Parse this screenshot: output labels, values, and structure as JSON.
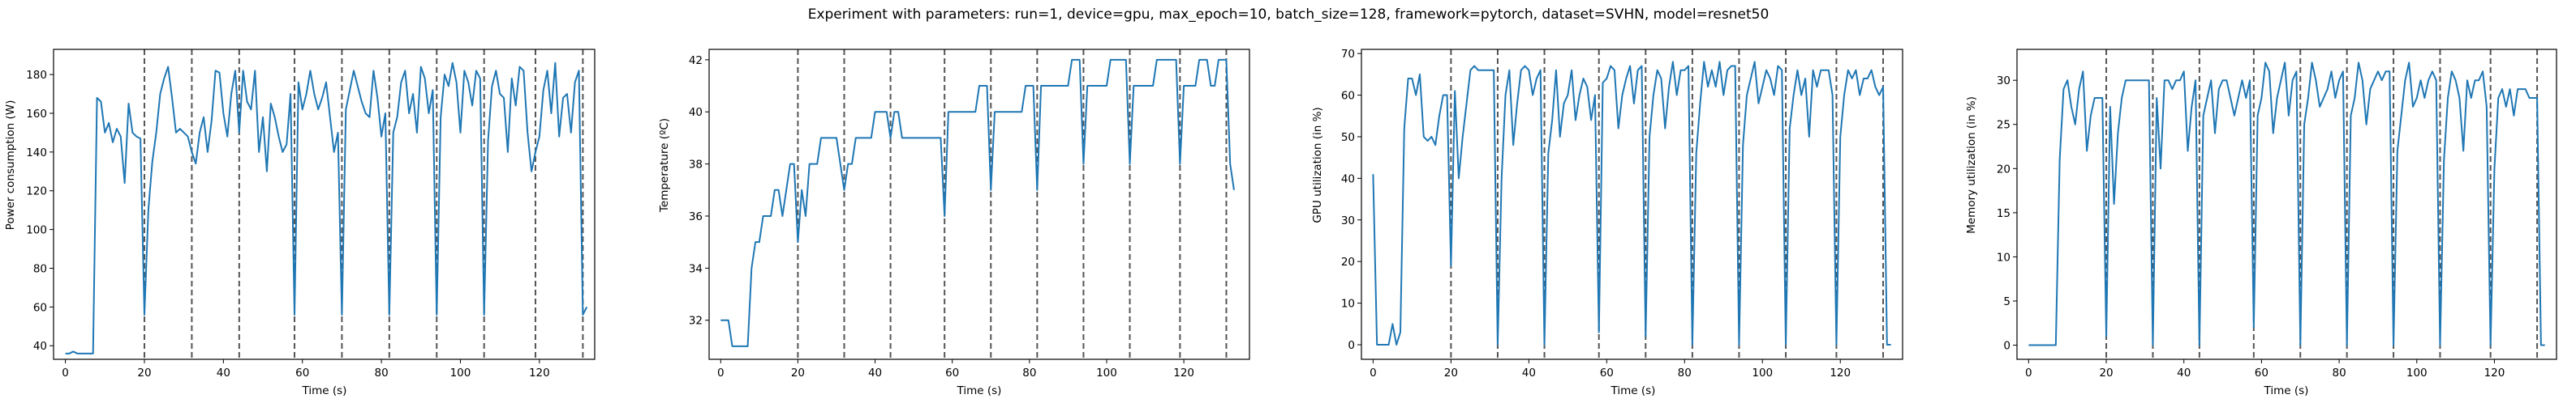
{
  "suptitle": "Experiment with parameters: run=1, device=gpu, max_epoch=10, batch_size=128, framework=pytorch, dataset=SVHN, model=resnet50",
  "style": {
    "line_color": "#1f77b4",
    "vline_color": "#555555",
    "axes_color": "#000000"
  },
  "epoch_markers": [
    20,
    32,
    44,
    58,
    70,
    82,
    94,
    106,
    119,
    131
  ],
  "chart_data": [
    {
      "type": "line",
      "xlabel": "Time (s)",
      "ylabel": "Power consumption (W)",
      "xlim": [
        -3,
        134
      ],
      "ylim": [
        33,
        193
      ],
      "xticks": [
        0,
        20,
        40,
        60,
        80,
        100,
        120
      ],
      "yticks": [
        40,
        60,
        80,
        100,
        120,
        140,
        160,
        180
      ],
      "vlines": [
        20,
        32,
        44,
        58,
        70,
        82,
        94,
        106,
        119,
        131
      ],
      "x": [
        0,
        1,
        2,
        3,
        4,
        5,
        6,
        7,
        8,
        9,
        10,
        11,
        12,
        13,
        14,
        15,
        16,
        17,
        18,
        19,
        20,
        21,
        22,
        23,
        24,
        25,
        26,
        27,
        28,
        29,
        30,
        31,
        32,
        33,
        34,
        35,
        36,
        37,
        38,
        39,
        40,
        41,
        42,
        43,
        44,
        45,
        46,
        47,
        48,
        49,
        50,
        51,
        52,
        53,
        54,
        55,
        56,
        57,
        58,
        59,
        60,
        61,
        62,
        63,
        64,
        65,
        66,
        67,
        68,
        69,
        70,
        71,
        72,
        73,
        74,
        75,
        76,
        77,
        78,
        79,
        80,
        81,
        82,
        83,
        84,
        85,
        86,
        87,
        88,
        89,
        90,
        91,
        92,
        93,
        94,
        95,
        96,
        97,
        98,
        99,
        100,
        101,
        102,
        103,
        104,
        105,
        106,
        107,
        108,
        109,
        110,
        111,
        112,
        113,
        114,
        115,
        116,
        117,
        118,
        119,
        120,
        121,
        122,
        123,
        124,
        125,
        126,
        127,
        128,
        129,
        130,
        131,
        132
      ],
      "y": [
        36,
        36,
        37,
        36,
        36,
        36,
        36,
        36,
        168,
        166,
        150,
        155,
        145,
        152,
        148,
        124,
        165,
        150,
        148,
        147,
        56,
        110,
        135,
        150,
        170,
        178,
        184,
        168,
        150,
        152,
        150,
        148,
        140,
        134,
        150,
        158,
        140,
        156,
        182,
        181,
        160,
        148,
        170,
        182,
        150,
        182,
        166,
        162,
        182,
        140,
        158,
        130,
        165,
        158,
        148,
        140,
        144,
        170,
        56,
        176,
        162,
        170,
        182,
        170,
        162,
        168,
        176,
        158,
        140,
        150,
        56,
        162,
        172,
        182,
        174,
        166,
        160,
        158,
        182,
        168,
        148,
        160,
        56,
        150,
        158,
        176,
        182,
        160,
        170,
        150,
        184,
        178,
        160,
        172,
        56,
        158,
        180,
        174,
        186,
        176,
        150,
        182,
        176,
        164,
        182,
        178,
        56,
        146,
        174,
        182,
        170,
        168,
        140,
        178,
        164,
        184,
        182,
        150,
        130,
        140,
        148,
        172,
        182,
        160,
        186,
        148,
        168,
        170,
        150,
        176,
        182,
        56,
        60
      ]
    },
    {
      "type": "line",
      "xlabel": "Time (s)",
      "ylabel": "Temperature (ºC)",
      "xlim": [
        -3,
        137
      ],
      "ylim": [
        30.5,
        42.4
      ],
      "xticks": [
        0,
        20,
        40,
        60,
        80,
        100,
        120
      ],
      "yticks": [
        32,
        34,
        36,
        38,
        40,
        42
      ],
      "vlines": [
        20,
        32,
        44,
        58,
        70,
        82,
        94,
        106,
        119,
        131
      ],
      "x": [
        0,
        1,
        2,
        3,
        4,
        5,
        6,
        7,
        8,
        9,
        10,
        11,
        12,
        13,
        14,
        15,
        16,
        17,
        18,
        19,
        20,
        21,
        22,
        23,
        24,
        25,
        26,
        27,
        28,
        29,
        30,
        31,
        32,
        33,
        34,
        35,
        36,
        37,
        38,
        39,
        40,
        41,
        42,
        43,
        44,
        45,
        46,
        47,
        48,
        49,
        50,
        51,
        52,
        53,
        54,
        55,
        56,
        57,
        58,
        59,
        60,
        61,
        62,
        63,
        64,
        65,
        66,
        67,
        68,
        69,
        70,
        71,
        72,
        73,
        74,
        75,
        76,
        77,
        78,
        79,
        80,
        81,
        82,
        83,
        84,
        85,
        86,
        87,
        88,
        89,
        90,
        91,
        92,
        93,
        94,
        95,
        96,
        97,
        98,
        99,
        100,
        101,
        102,
        103,
        104,
        105,
        106,
        107,
        108,
        109,
        110,
        111,
        112,
        113,
        114,
        115,
        116,
        117,
        118,
        119,
        120,
        121,
        122,
        123,
        124,
        125,
        126,
        127,
        128,
        129,
        130,
        131,
        132,
        133
      ],
      "y": [
        32,
        32,
        32,
        31,
        31,
        31,
        31,
        31,
        34,
        35,
        35,
        36,
        36,
        36,
        37,
        37,
        36,
        37,
        38,
        38,
        35,
        37,
        36,
        38,
        38,
        38,
        39,
        39,
        39,
        39,
        39,
        38,
        37,
        38,
        38,
        39,
        39,
        39,
        39,
        39,
        40,
        40,
        40,
        40,
        39,
        40,
        40,
        39,
        39,
        39,
        39,
        39,
        39,
        39,
        39,
        39,
        39,
        39,
        36,
        40,
        40,
        40,
        40,
        40,
        40,
        40,
        40,
        41,
        41,
        41,
        37,
        40,
        40,
        40,
        40,
        40,
        40,
        40,
        40,
        41,
        41,
        41,
        37,
        41,
        41,
        41,
        41,
        41,
        41,
        41,
        41,
        42,
        42,
        42,
        38,
        41,
        41,
        41,
        41,
        41,
        41,
        42,
        42,
        42,
        42,
        42,
        38,
        41,
        41,
        41,
        41,
        41,
        41,
        42,
        42,
        42,
        42,
        42,
        42,
        38,
        41,
        41,
        41,
        41,
        42,
        42,
        42,
        41,
        41,
        42,
        42,
        42,
        38,
        37
      ]
    },
    {
      "type": "line",
      "xlabel": "Time (s)",
      "ylabel": "GPU utilization (in %)",
      "xlim": [
        -3,
        136
      ],
      "ylim": [
        -3.5,
        71
      ],
      "xticks": [
        0,
        20,
        40,
        60,
        80,
        100,
        120
      ],
      "yticks": [
        0,
        10,
        20,
        30,
        40,
        50,
        60,
        70
      ],
      "vlines": [
        20,
        32,
        44,
        58,
        70,
        82,
        94,
        106,
        119,
        131
      ],
      "x": [
        0,
        1,
        2,
        3,
        4,
        5,
        6,
        7,
        8,
        9,
        10,
        11,
        12,
        13,
        14,
        15,
        16,
        17,
        18,
        19,
        20,
        21,
        22,
        23,
        24,
        25,
        26,
        27,
        28,
        29,
        30,
        31,
        32,
        33,
        34,
        35,
        36,
        37,
        38,
        39,
        40,
        41,
        42,
        43,
        44,
        45,
        46,
        47,
        48,
        49,
        50,
        51,
        52,
        53,
        54,
        55,
        56,
        57,
        58,
        59,
        60,
        61,
        62,
        63,
        64,
        65,
        66,
        67,
        68,
        69,
        70,
        71,
        72,
        73,
        74,
        75,
        76,
        77,
        78,
        79,
        80,
        81,
        82,
        83,
        84,
        85,
        86,
        87,
        88,
        89,
        90,
        91,
        92,
        93,
        94,
        95,
        96,
        97,
        98,
        99,
        100,
        101,
        102,
        103,
        104,
        105,
        106,
        107,
        108,
        109,
        110,
        111,
        112,
        113,
        114,
        115,
        116,
        117,
        118,
        119,
        120,
        121,
        122,
        123,
        124,
        125,
        126,
        127,
        128,
        129,
        130,
        131,
        132,
        133
      ],
      "y": [
        41,
        0,
        0,
        0,
        0,
        5,
        0,
        3,
        52,
        64,
        64,
        60,
        65,
        50,
        49,
        50,
        48,
        55,
        60,
        60,
        19,
        61,
        40,
        50,
        58,
        66,
        67,
        66,
        66,
        66,
        66,
        66,
        0,
        40,
        60,
        66,
        48,
        58,
        66,
        67,
        66,
        60,
        64,
        66,
        0,
        46,
        54,
        66,
        50,
        58,
        60,
        66,
        54,
        60,
        64,
        62,
        54,
        60,
        3,
        63,
        64,
        67,
        66,
        52,
        60,
        64,
        67,
        58,
        66,
        67,
        2,
        50,
        60,
        66,
        64,
        52,
        62,
        68,
        60,
        66,
        66,
        67,
        0,
        46,
        58,
        68,
        62,
        66,
        62,
        68,
        60,
        66,
        67,
        67,
        0,
        48,
        60,
        64,
        68,
        58,
        62,
        66,
        64,
        60,
        67,
        66,
        0,
        52,
        60,
        66,
        60,
        64,
        50,
        66,
        62,
        66,
        66,
        66,
        60,
        0,
        50,
        60,
        66,
        64,
        66,
        60,
        64,
        64,
        66,
        62,
        60,
        62,
        0,
        0
      ]
    },
    {
      "type": "line",
      "xlabel": "Time (s)",
      "ylabel": "Memory utilization (in %)",
      "xlim": [
        -3,
        136
      ],
      "ylim": [
        -1.6,
        33.5
      ],
      "xticks": [
        0,
        20,
        40,
        60,
        80,
        100,
        120
      ],
      "yticks": [
        0,
        5,
        10,
        15,
        20,
        25,
        30
      ],
      "vlines": [
        20,
        32,
        44,
        58,
        70,
        82,
        94,
        106,
        119,
        131
      ],
      "x": [
        0,
        1,
        2,
        3,
        4,
        5,
        6,
        7,
        8,
        9,
        10,
        11,
        12,
        13,
        14,
        15,
        16,
        17,
        18,
        19,
        20,
        21,
        22,
        23,
        24,
        25,
        26,
        27,
        28,
        29,
        30,
        31,
        32,
        33,
        34,
        35,
        36,
        37,
        38,
        39,
        40,
        41,
        42,
        43,
        44,
        45,
        46,
        47,
        48,
        49,
        50,
        51,
        52,
        53,
        54,
        55,
        56,
        57,
        58,
        59,
        60,
        61,
        62,
        63,
        64,
        65,
        66,
        67,
        68,
        69,
        70,
        71,
        72,
        73,
        74,
        75,
        76,
        77,
        78,
        79,
        80,
        81,
        82,
        83,
        84,
        85,
        86,
        87,
        88,
        89,
        90,
        91,
        92,
        93,
        94,
        95,
        96,
        97,
        98,
        99,
        100,
        101,
        102,
        103,
        104,
        105,
        106,
        107,
        108,
        109,
        110,
        111,
        112,
        113,
        114,
        115,
        116,
        117,
        118,
        119,
        120,
        121,
        122,
        123,
        124,
        125,
        126,
        127,
        128,
        129,
        130,
        131,
        132,
        133
      ],
      "y": [
        0,
        0,
        0,
        0,
        0,
        0,
        0,
        0,
        21,
        29,
        30,
        27,
        25,
        29,
        31,
        22,
        26,
        28,
        28,
        28,
        1,
        27,
        16,
        24,
        28,
        30,
        30,
        30,
        30,
        30,
        30,
        30,
        0,
        28,
        20,
        30,
        30,
        29,
        30,
        30,
        31,
        22,
        27,
        30,
        0,
        26,
        28,
        30,
        24,
        29,
        30,
        30,
        28,
        26,
        28,
        30,
        28,
        30,
        2,
        26,
        28,
        32,
        31,
        24,
        28,
        30,
        32,
        26,
        30,
        31,
        0,
        25,
        28,
        32,
        30,
        27,
        28,
        29,
        31,
        28,
        30,
        31,
        0,
        26,
        28,
        32,
        30,
        25,
        29,
        30,
        31,
        30,
        31,
        31,
        0,
        22,
        26,
        30,
        32,
        27,
        28,
        30,
        28,
        30,
        31,
        30,
        0,
        21,
        28,
        31,
        30,
        28,
        22,
        30,
        28,
        30,
        30,
        31,
        27,
        0,
        20,
        28,
        29,
        27,
        29,
        26,
        29,
        29,
        29,
        28,
        28,
        28,
        0,
        0
      ]
    }
  ]
}
